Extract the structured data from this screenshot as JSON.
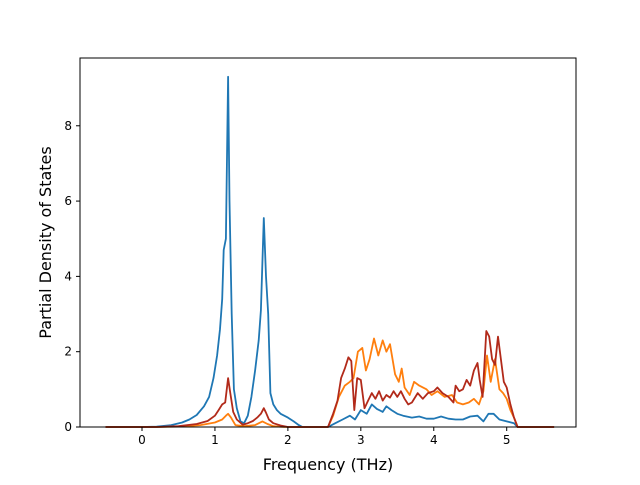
{
  "chart_data": {
    "type": "line",
    "title": "",
    "xlabel": "Frequency (THz)",
    "ylabel": "Partial Density of States",
    "xlim": [
      -0.85,
      5.95
    ],
    "ylim": [
      0,
      9.8
    ],
    "xticks": [
      0,
      1,
      2,
      3,
      4,
      5
    ],
    "yticks": [
      0,
      2,
      4,
      6,
      8
    ],
    "grid": false,
    "legend": "none",
    "series": [
      {
        "color": "#1f77b4",
        "points": [
          [
            -0.5,
            0
          ],
          [
            0.0,
            0.0
          ],
          [
            0.2,
            0.01
          ],
          [
            0.4,
            0.05
          ],
          [
            0.55,
            0.12
          ],
          [
            0.65,
            0.2
          ],
          [
            0.75,
            0.32
          ],
          [
            0.85,
            0.55
          ],
          [
            0.92,
            0.8
          ],
          [
            0.98,
            1.3
          ],
          [
            1.03,
            1.9
          ],
          [
            1.07,
            2.6
          ],
          [
            1.1,
            3.4
          ],
          [
            1.12,
            4.7
          ],
          [
            1.15,
            5.0
          ],
          [
            1.18,
            9.3
          ],
          [
            1.2,
            6.0
          ],
          [
            1.23,
            3.0
          ],
          [
            1.26,
            1.0
          ],
          [
            1.3,
            0.5
          ],
          [
            1.35,
            0.15
          ],
          [
            1.4,
            0.1
          ],
          [
            1.45,
            0.3
          ],
          [
            1.5,
            0.8
          ],
          [
            1.55,
            1.5
          ],
          [
            1.6,
            2.3
          ],
          [
            1.63,
            3.1
          ],
          [
            1.67,
            5.55
          ],
          [
            1.7,
            4.0
          ],
          [
            1.73,
            3.0
          ],
          [
            1.76,
            0.9
          ],
          [
            1.8,
            0.6
          ],
          [
            1.85,
            0.45
          ],
          [
            1.9,
            0.35
          ],
          [
            2.0,
            0.25
          ],
          [
            2.08,
            0.15
          ],
          [
            2.15,
            0.05
          ],
          [
            2.2,
            0.0
          ],
          [
            2.55,
            0.0
          ],
          [
            2.65,
            0.1
          ],
          [
            2.75,
            0.2
          ],
          [
            2.85,
            0.3
          ],
          [
            2.92,
            0.2
          ],
          [
            3.0,
            0.45
          ],
          [
            3.08,
            0.35
          ],
          [
            3.15,
            0.6
          ],
          [
            3.22,
            0.48
          ],
          [
            3.3,
            0.4
          ],
          [
            3.35,
            0.55
          ],
          [
            3.42,
            0.45
          ],
          [
            3.5,
            0.35
          ],
          [
            3.58,
            0.3
          ],
          [
            3.7,
            0.25
          ],
          [
            3.8,
            0.28
          ],
          [
            3.9,
            0.22
          ],
          [
            4.0,
            0.22
          ],
          [
            4.1,
            0.28
          ],
          [
            4.2,
            0.22
          ],
          [
            4.3,
            0.2
          ],
          [
            4.4,
            0.2
          ],
          [
            4.5,
            0.28
          ],
          [
            4.6,
            0.3
          ],
          [
            4.68,
            0.15
          ],
          [
            4.75,
            0.35
          ],
          [
            4.82,
            0.35
          ],
          [
            4.9,
            0.2
          ],
          [
            5.0,
            0.15
          ],
          [
            5.1,
            0.1
          ],
          [
            5.15,
            0.0
          ],
          [
            5.65,
            0.0
          ]
        ]
      },
      {
        "color": "#ff7f0e",
        "points": [
          [
            -0.5,
            0
          ],
          [
            0.2,
            0.0
          ],
          [
            0.5,
            0.01
          ],
          [
            0.8,
            0.05
          ],
          [
            1.0,
            0.12
          ],
          [
            1.1,
            0.2
          ],
          [
            1.15,
            0.3
          ],
          [
            1.18,
            0.35
          ],
          [
            1.22,
            0.25
          ],
          [
            1.28,
            0.05
          ],
          [
            1.4,
            0.02
          ],
          [
            1.55,
            0.05
          ],
          [
            1.65,
            0.15
          ],
          [
            1.72,
            0.08
          ],
          [
            1.8,
            0.02
          ],
          [
            1.95,
            0.0
          ],
          [
            2.55,
            0.0
          ],
          [
            2.62,
            0.3
          ],
          [
            2.7,
            0.8
          ],
          [
            2.78,
            1.1
          ],
          [
            2.85,
            1.2
          ],
          [
            2.9,
            1.3
          ],
          [
            2.96,
            2.0
          ],
          [
            3.02,
            2.1
          ],
          [
            3.07,
            1.5
          ],
          [
            3.12,
            1.8
          ],
          [
            3.18,
            2.35
          ],
          [
            3.24,
            1.9
          ],
          [
            3.3,
            2.3
          ],
          [
            3.35,
            2.0
          ],
          [
            3.4,
            2.2
          ],
          [
            3.47,
            1.4
          ],
          [
            3.52,
            1.2
          ],
          [
            3.56,
            1.55
          ],
          [
            3.6,
            1.05
          ],
          [
            3.67,
            0.85
          ],
          [
            3.73,
            1.2
          ],
          [
            3.8,
            1.1
          ],
          [
            3.9,
            1.0
          ],
          [
            3.97,
            0.85
          ],
          [
            4.05,
            0.95
          ],
          [
            4.15,
            0.8
          ],
          [
            4.25,
            0.85
          ],
          [
            4.32,
            0.65
          ],
          [
            4.4,
            0.6
          ],
          [
            4.48,
            0.65
          ],
          [
            4.55,
            0.75
          ],
          [
            4.62,
            0.6
          ],
          [
            4.68,
            0.95
          ],
          [
            4.73,
            1.9
          ],
          [
            4.78,
            1.2
          ],
          [
            4.84,
            1.8
          ],
          [
            4.9,
            1.0
          ],
          [
            4.95,
            0.9
          ],
          [
            5.0,
            0.75
          ],
          [
            5.05,
            0.45
          ],
          [
            5.1,
            0.25
          ],
          [
            5.15,
            0.0
          ],
          [
            5.65,
            0.0
          ]
        ]
      },
      {
        "color": "#b22a1a",
        "points": [
          [
            -0.5,
            0
          ],
          [
            0.2,
            0.0
          ],
          [
            0.5,
            0.02
          ],
          [
            0.75,
            0.08
          ],
          [
            0.9,
            0.16
          ],
          [
            1.0,
            0.3
          ],
          [
            1.05,
            0.45
          ],
          [
            1.1,
            0.6
          ],
          [
            1.14,
            0.65
          ],
          [
            1.18,
            1.3
          ],
          [
            1.21,
            0.9
          ],
          [
            1.25,
            0.4
          ],
          [
            1.3,
            0.2
          ],
          [
            1.38,
            0.06
          ],
          [
            1.45,
            0.1
          ],
          [
            1.52,
            0.16
          ],
          [
            1.58,
            0.25
          ],
          [
            1.63,
            0.35
          ],
          [
            1.67,
            0.5
          ],
          [
            1.7,
            0.38
          ],
          [
            1.74,
            0.2
          ],
          [
            1.8,
            0.1
          ],
          [
            1.9,
            0.04
          ],
          [
            2.0,
            0.0
          ],
          [
            2.55,
            0.0
          ],
          [
            2.62,
            0.35
          ],
          [
            2.68,
            0.7
          ],
          [
            2.73,
            1.3
          ],
          [
            2.78,
            1.55
          ],
          [
            2.83,
            1.85
          ],
          [
            2.87,
            1.75
          ],
          [
            2.91,
            0.45
          ],
          [
            2.95,
            1.3
          ],
          [
            3.0,
            1.25
          ],
          [
            3.05,
            0.5
          ],
          [
            3.1,
            0.7
          ],
          [
            3.15,
            0.9
          ],
          [
            3.2,
            0.75
          ],
          [
            3.25,
            0.95
          ],
          [
            3.3,
            0.7
          ],
          [
            3.35,
            0.85
          ],
          [
            3.4,
            0.78
          ],
          [
            3.45,
            0.95
          ],
          [
            3.5,
            0.8
          ],
          [
            3.55,
            0.95
          ],
          [
            3.6,
            0.75
          ],
          [
            3.65,
            0.6
          ],
          [
            3.7,
            0.65
          ],
          [
            3.78,
            0.9
          ],
          [
            3.85,
            0.75
          ],
          [
            3.92,
            0.9
          ],
          [
            4.0,
            0.95
          ],
          [
            4.05,
            1.05
          ],
          [
            4.12,
            0.9
          ],
          [
            4.2,
            0.8
          ],
          [
            4.27,
            0.65
          ],
          [
            4.3,
            1.1
          ],
          [
            4.35,
            0.95
          ],
          [
            4.4,
            1.0
          ],
          [
            4.45,
            1.25
          ],
          [
            4.5,
            1.1
          ],
          [
            4.55,
            1.5
          ],
          [
            4.6,
            1.7
          ],
          [
            4.63,
            1.25
          ],
          [
            4.67,
            0.8
          ],
          [
            4.72,
            2.55
          ],
          [
            4.76,
            2.4
          ],
          [
            4.8,
            1.8
          ],
          [
            4.84,
            1.65
          ],
          [
            4.88,
            2.4
          ],
          [
            4.92,
            1.8
          ],
          [
            4.96,
            1.2
          ],
          [
            5.0,
            1.05
          ],
          [
            5.05,
            0.6
          ],
          [
            5.1,
            0.25
          ],
          [
            5.15,
            0.0
          ],
          [
            5.65,
            0.0
          ]
        ]
      }
    ]
  }
}
